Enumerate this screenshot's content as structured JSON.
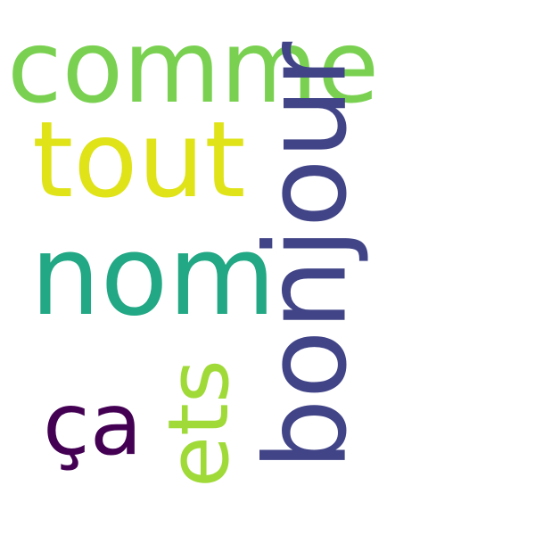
{
  "words": [
    {
      "text": "comme",
      "color": "#7ad151"
    },
    {
      "text": "tout",
      "color": "#dfe318"
    },
    {
      "text": "nom",
      "color": "#22a884"
    },
    {
      "text": "ça",
      "color": "#440154"
    },
    {
      "text": "bonjour",
      "color": "#414487"
    },
    {
      "text": "ets",
      "color": "#a0da39"
    }
  ]
}
